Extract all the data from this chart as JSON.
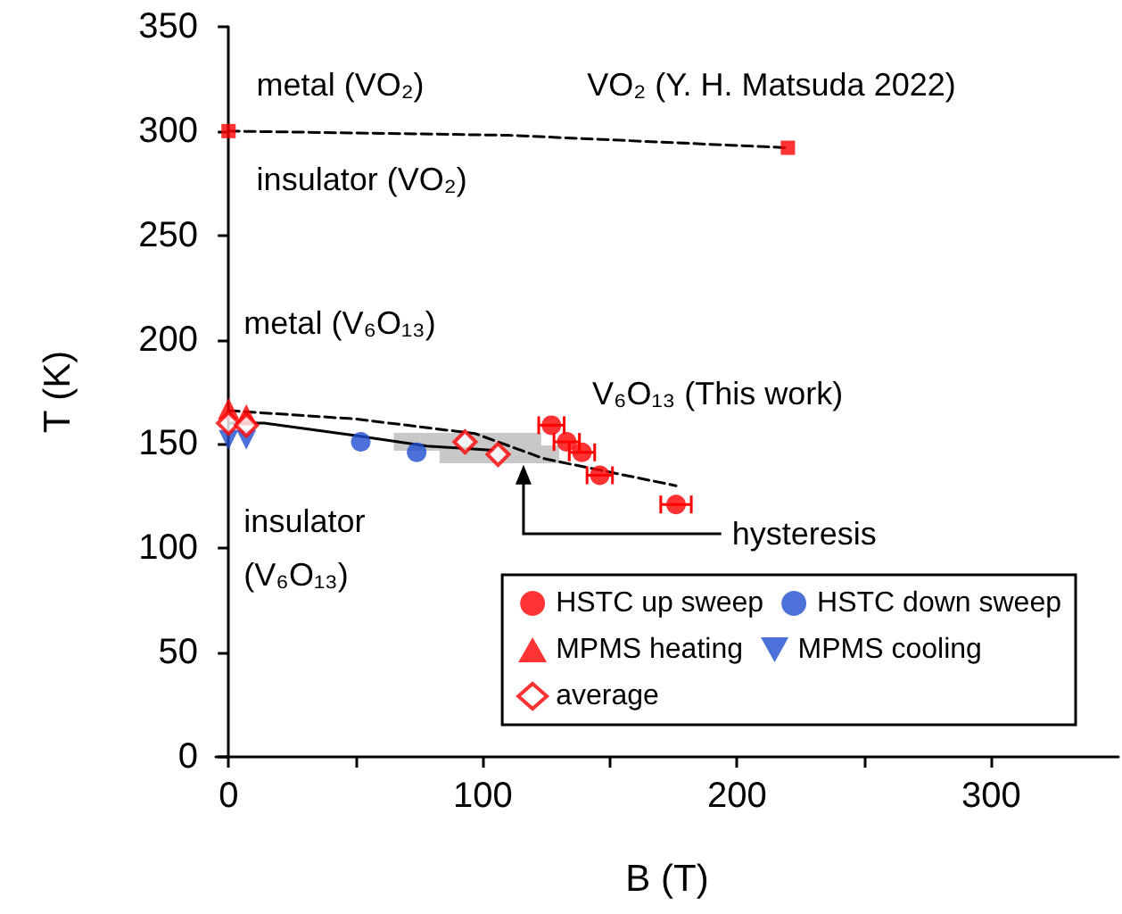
{
  "chart_data": {
    "type": "scatter",
    "xlabel": "B (T)",
    "ylabel": "T (K)",
    "xlim": [
      -5,
      350
    ],
    "xticks": [
      0,
      {
        "value": 50,
        "label": null
      },
      100,
      {
        "value": 150,
        "label": null
      },
      200,
      {
        "value": 250,
        "label": null
      },
      300
    ],
    "ylim": [
      0,
      350
    ],
    "yticks": [
      0,
      50,
      100,
      150,
      200,
      250,
      300,
      350
    ],
    "grid": false,
    "legend": "bottom right",
    "annotations": [
      "metal (VO₂)",
      "VO₂ (Y. H. Matsuda 2022)",
      "insulator (VO₂)",
      "metal (V₆O₁₃)",
      "V₆O₁₃ (This work)",
      "insulator (V₆O₁₃)",
      "hysteresis"
    ],
    "series": [
      {
        "name": "HSTC up sweep",
        "marker": "circle",
        "color": "#ff0000",
        "x": [
          127,
          133,
          139,
          146,
          176
        ],
        "values": [
          159,
          151,
          146,
          135,
          121
        ],
        "xerrors": [
          5,
          5,
          5,
          5,
          6
        ]
      },
      {
        "name": "HSTC down sweep",
        "marker": "circle",
        "color": "#1f4fcf",
        "x": [
          52,
          74
        ],
        "values": [
          151,
          146
        ]
      },
      {
        "name": "MPMS heating",
        "marker": "triangle",
        "color": "#ff0000",
        "x": [
          0,
          7
        ],
        "values": [
          167,
          164
        ]
      },
      {
        "name": "MPMS cooling",
        "marker": "triangle-down",
        "color": "#1f4fcf",
        "x": [
          0,
          7
        ],
        "values": [
          152,
          152
        ]
      },
      {
        "name": "average",
        "marker": "diamond",
        "color": "#ff0000",
        "x": [
          0,
          7,
          93,
          106
        ],
        "values": [
          160,
          159,
          151,
          145
        ],
        "xerrors": [
          null,
          null,
          [
            65,
            123
          ],
          [
            83,
            130
          ]
        ]
      },
      {
        "marker": "square",
        "color": "#ff0000",
        "x": [
          0,
          220
        ],
        "values": [
          300,
          292
        ]
      },
      {
        "type": "line",
        "marker": "none",
        "line_style": "dashed",
        "color": "#000000",
        "x": [
          0,
          110,
          220
        ],
        "values": [
          300,
          298,
          292
        ]
      },
      {
        "type": "line",
        "marker": "none",
        "line_style": "dashed",
        "color": "#000000",
        "x": [
          0,
          50,
          97,
          124,
          176
        ],
        "values": [
          166,
          162,
          155,
          143,
          130
        ]
      },
      {
        "type": "line",
        "marker": "none",
        "line_style": "solid",
        "color": "#000000",
        "x": [
          0,
          14,
          50,
          78,
          104
        ],
        "values": [
          160,
          160,
          154,
          149,
          147
        ]
      }
    ]
  }
}
